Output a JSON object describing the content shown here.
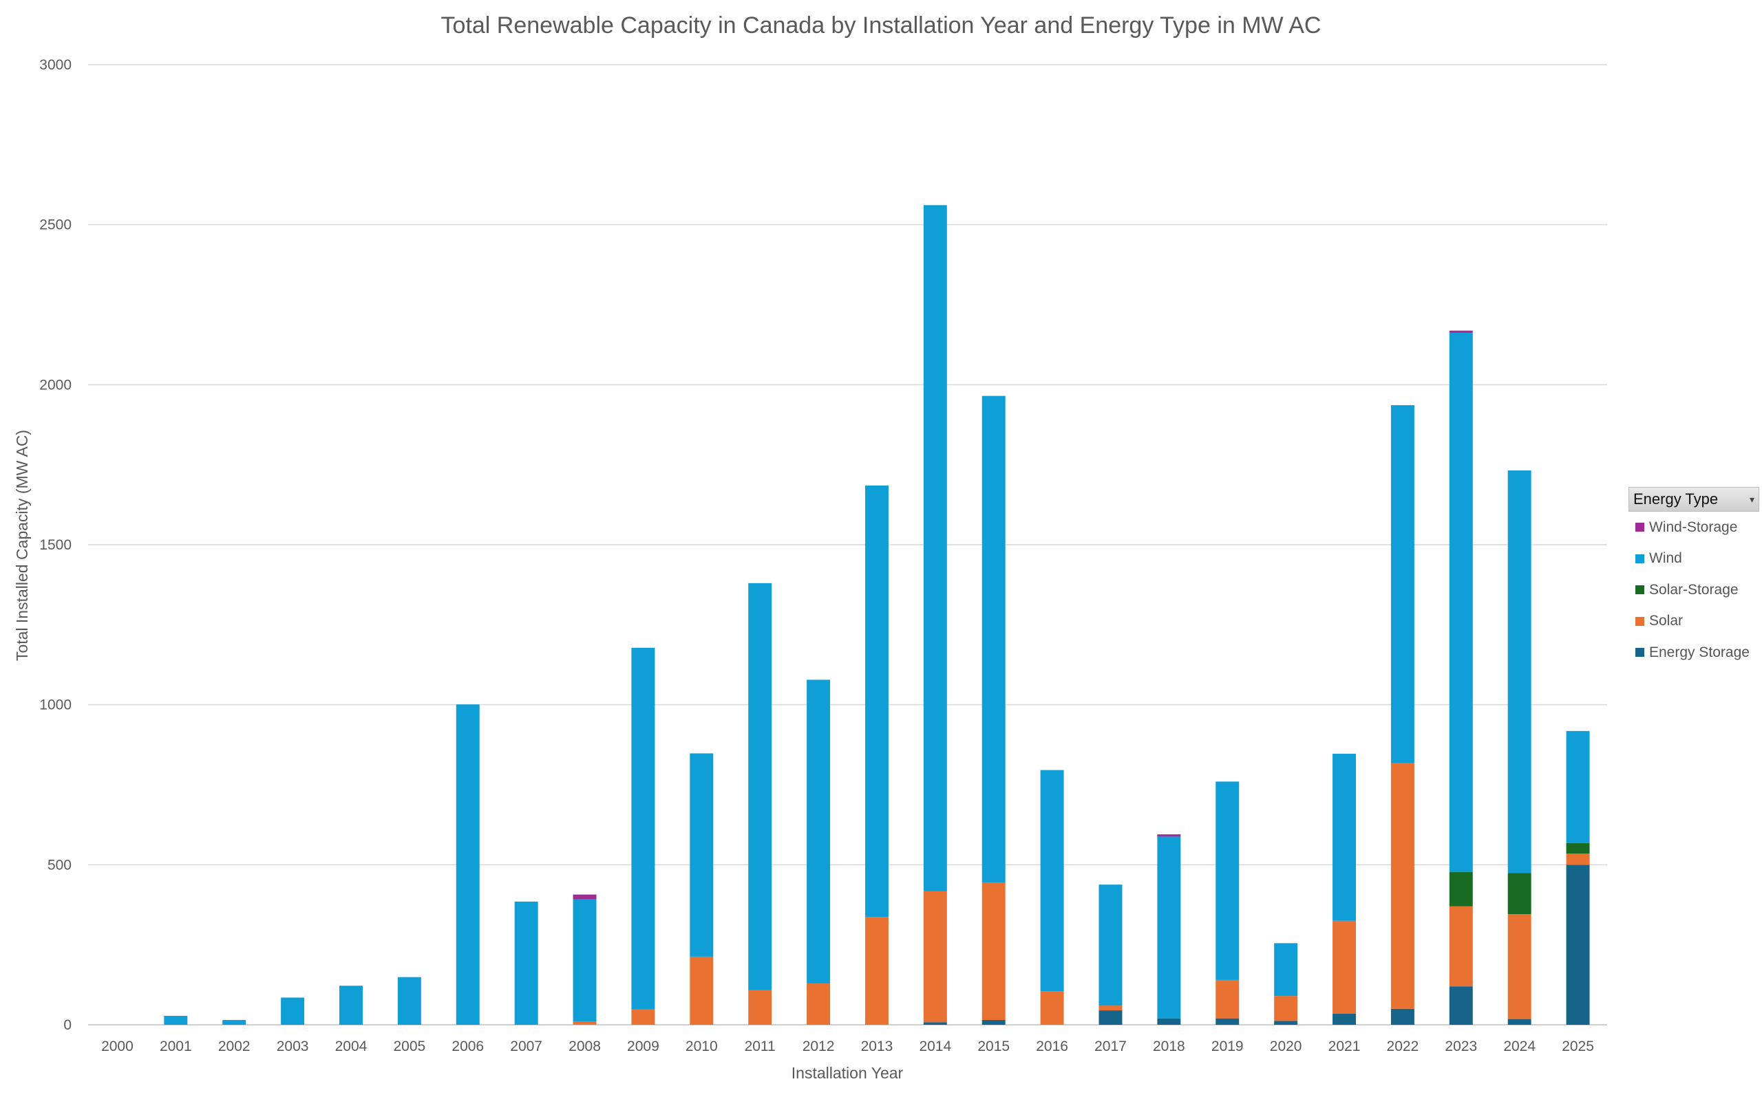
{
  "chart_data": {
    "type": "bar",
    "stacked": true,
    "title": "Total Renewable Capacity in Canada by Installation Year and Energy Type in MW AC",
    "xlabel": "Installation Year",
    "ylabel": "Total Installed Capacity (MW AC)",
    "ylim": [
      0,
      3000
    ],
    "yticks": [
      0,
      500,
      1000,
      1500,
      2000,
      2500,
      3000
    ],
    "grid": true,
    "legend_title": "Energy Type",
    "legend_position": "right",
    "categories": [
      "2000",
      "2001",
      "2002",
      "2003",
      "2004",
      "2005",
      "2006",
      "2007",
      "2008",
      "2009",
      "2010",
      "2011",
      "2012",
      "2013",
      "2014",
      "2015",
      "2016",
      "2017",
      "2018",
      "2019",
      "2020",
      "2021",
      "2022",
      "2023",
      "2024",
      "2025"
    ],
    "series": [
      {
        "name": "Energy Storage",
        "color": "#17648a",
        "values": [
          0,
          0,
          0,
          0,
          0,
          0,
          0,
          0,
          0,
          0,
          0,
          0,
          0,
          0,
          8,
          15,
          0,
          45,
          20,
          20,
          12,
          35,
          50,
          120,
          18,
          500
        ]
      },
      {
        "name": "Solar",
        "color": "#e97132",
        "values": [
          0,
          0,
          0,
          0,
          0,
          0,
          0,
          0,
          10,
          48,
          213,
          108,
          130,
          337,
          410,
          430,
          105,
          15,
          0,
          120,
          78,
          290,
          767,
          250,
          328,
          35
        ]
      },
      {
        "name": "Solar-Storage",
        "color": "#196b24",
        "values": [
          0,
          0,
          0,
          0,
          0,
          0,
          0,
          0,
          0,
          0,
          0,
          0,
          0,
          0,
          0,
          0,
          0,
          0,
          0,
          0,
          0,
          0,
          0,
          107,
          128,
          33
        ]
      },
      {
        "name": "Wind",
        "color": "#0f9ed5",
        "values": [
          0,
          28,
          15,
          85,
          122,
          149,
          1001,
          385,
          382,
          1130,
          635,
          1272,
          948,
          1348,
          2143,
          1520,
          691,
          378,
          568,
          620,
          165,
          522,
          1119,
          1685,
          1258,
          350
        ]
      },
      {
        "name": "Wind-Storage",
        "color": "#a02b93",
        "values": [
          0,
          0,
          0,
          0,
          0,
          0,
          0,
          0,
          15,
          0,
          0,
          0,
          0,
          0,
          0,
          0,
          0,
          0,
          7,
          0,
          0,
          0,
          0,
          7,
          0,
          0
        ]
      }
    ]
  }
}
